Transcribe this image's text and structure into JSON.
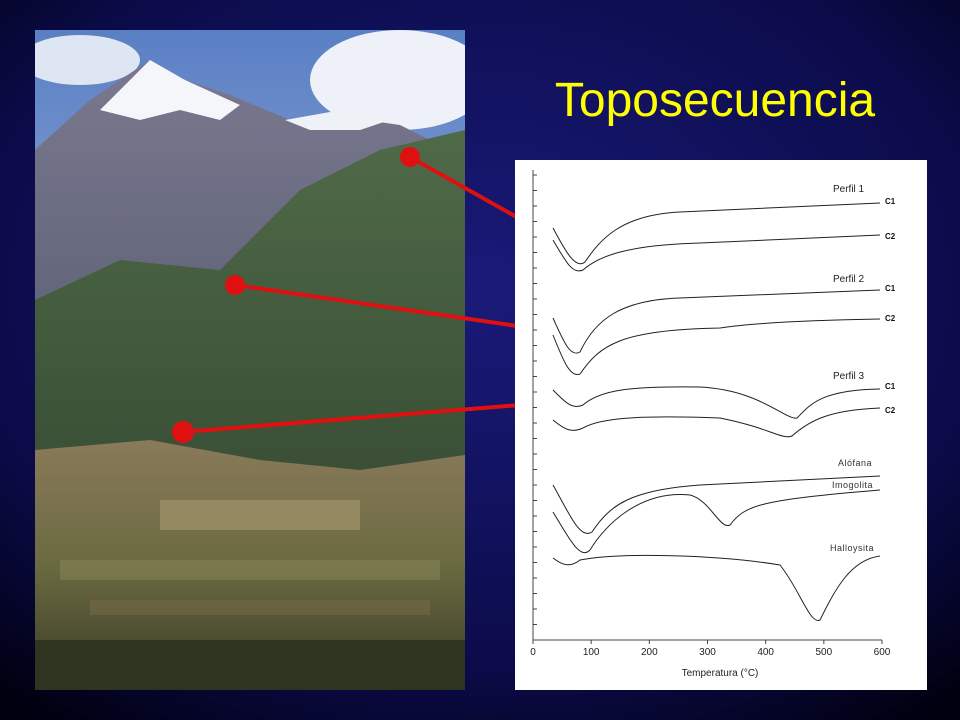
{
  "title": "Toposecuencia",
  "chart": {
    "x_label": "Temperatura (°C)",
    "xlim": [
      0,
      600
    ],
    "xticks": [
      0,
      100,
      200,
      300,
      400,
      500,
      600
    ],
    "profiles": [
      {
        "name": "Perfil 1",
        "curves": [
          "C1",
          "C2"
        ]
      },
      {
        "name": "Perfil 2",
        "curves": [
          "C1",
          "C2"
        ]
      },
      {
        "name": "Perfil 3",
        "curves": [
          "C1",
          "C2"
        ]
      }
    ],
    "references": [
      "Alófana",
      "Imogolita",
      "Halloysita"
    ]
  }
}
